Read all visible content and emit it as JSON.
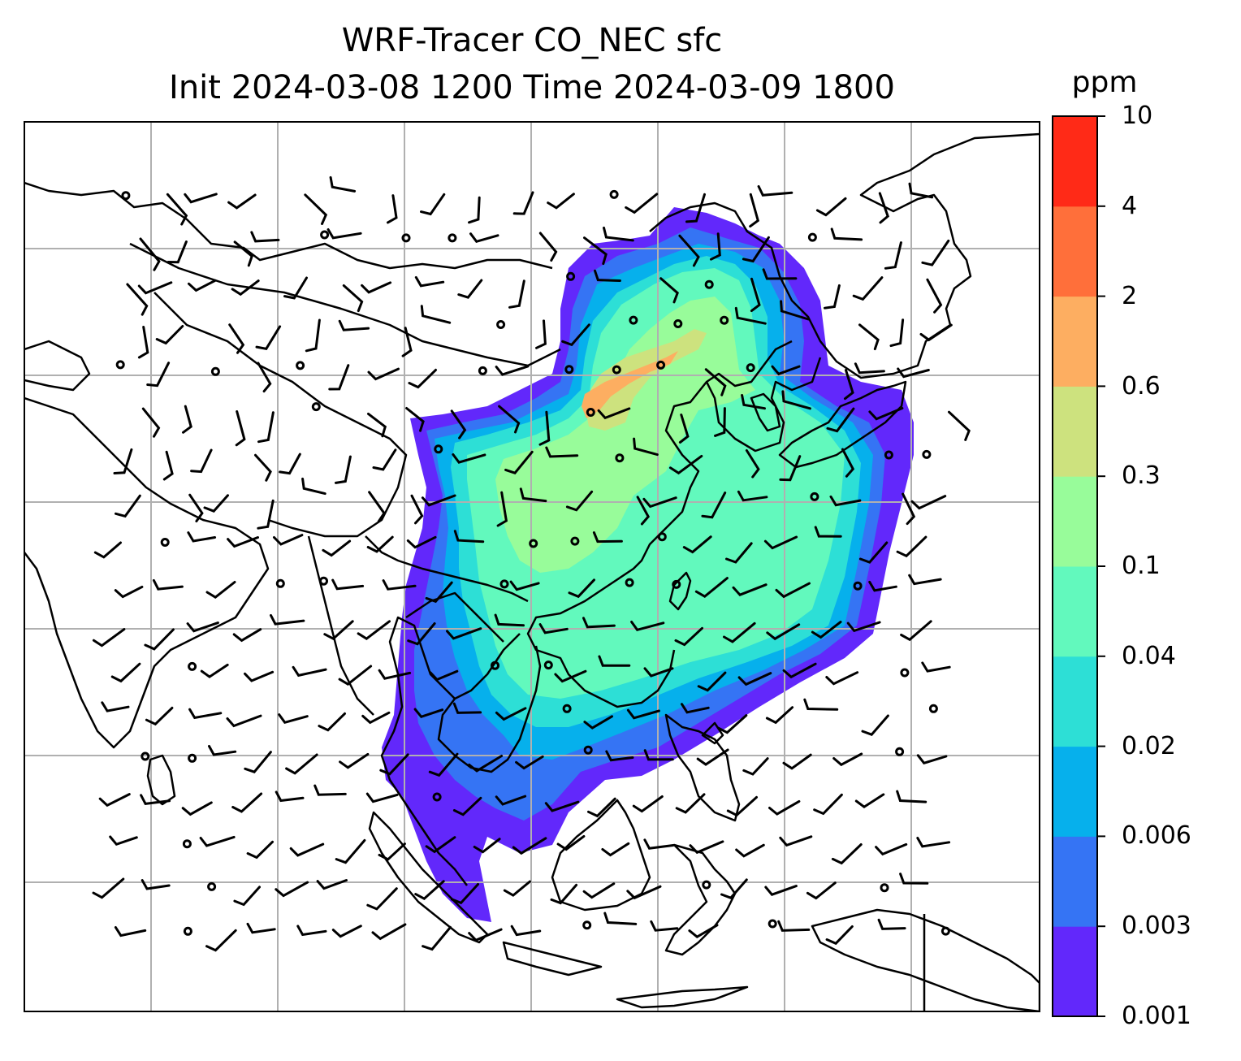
{
  "title": {
    "line1": "WRF-Tracer CO_NEC sfc",
    "line2": "Init 2024-03-08 1200 Time 2024-03-09 1800"
  },
  "colorbar": {
    "unit": "ppm",
    "levels": [
      {
        "label": "0.001",
        "color": "#6228fb"
      },
      {
        "label": "0.003",
        "color": "#3574f4"
      },
      {
        "label": "0.006",
        "color": "#06b0ec"
      },
      {
        "label": "0.02",
        "color": "#2ddfd6"
      },
      {
        "label": "0.04",
        "color": "#62f9bd"
      },
      {
        "label": "0.1",
        "color": "#98fc9a"
      },
      {
        "label": "0.3",
        "color": "#cde27e"
      },
      {
        "label": "0.6",
        "color": "#fdae61"
      },
      {
        "label": "2",
        "color": "#ff6f3a"
      },
      {
        "label": "4",
        "color": "#ff2a17"
      },
      {
        "label": "10",
        "color": null
      }
    ]
  },
  "map": {
    "gridlines": true,
    "coastline_color": "#000000",
    "grid_color": "#b0b0b0",
    "wind_barbs": true
  }
}
